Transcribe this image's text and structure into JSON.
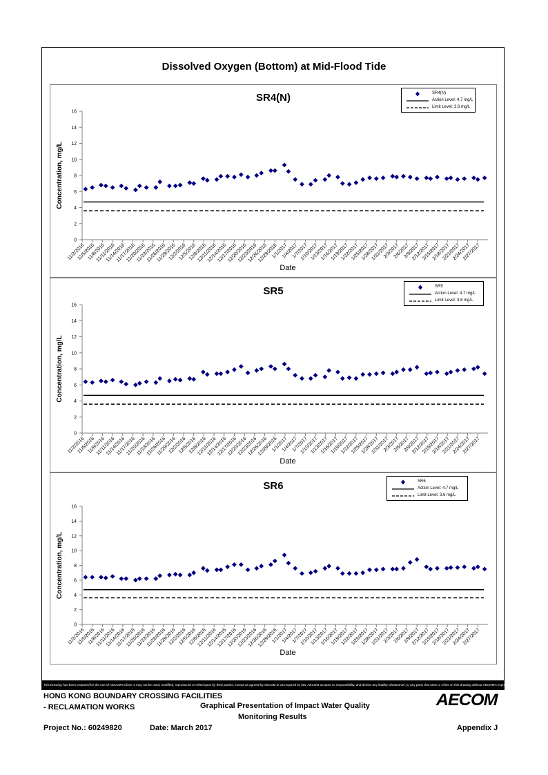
{
  "page_title": "Dissolved Oxygen (Bottom) at Mid-Flood Tide",
  "chart_data": [
    {
      "type": "scatter",
      "title": "SR4(N)",
      "xlabel": "Date",
      "ylabel": "Concentration, mg/L",
      "ylim": [
        0,
        16
      ],
      "yticks": [
        0,
        2,
        4,
        6,
        8,
        10,
        12,
        14,
        16
      ],
      "categories": [
        "11/2/2016",
        "11/5/2016",
        "11/8/2016",
        "11/11/2016",
        "11/14/2016",
        "11/17/2016",
        "11/20/2016",
        "11/23/2016",
        "11/26/2016",
        "11/29/2016",
        "12/2/2016",
        "12/5/2016",
        "12/8/2016",
        "12/11/2016",
        "12/14/2016",
        "12/17/2016",
        "12/20/2016",
        "12/23/2016",
        "12/26/2016",
        "12/29/2016",
        "1/1/2017",
        "1/4/2017",
        "1/7/2017",
        "1/10/2017",
        "1/13/2017",
        "1/16/2017",
        "1/19/2017",
        "1/22/2017",
        "1/25/2017",
        "1/28/2017",
        "1/31/2017",
        "2/3/2017",
        "2/6/2017",
        "2/9/2017",
        "2/12/2017",
        "2/15/2017",
        "2/18/2017",
        "2/21/2017",
        "2/24/2017",
        "2/27/2017"
      ],
      "series": [
        {
          "name": "SR4(N)",
          "marker": "diamond",
          "color": "#000080",
          "x": [
            0,
            1,
            2.3,
            3,
            4,
            5.3,
            6,
            7.4,
            8,
            9,
            10.4,
            11,
            12.4,
            13.3,
            14,
            15.4,
            16,
            17.4,
            18,
            19.4,
            20,
            21,
            22,
            23,
            24,
            25.3,
            26,
            27.4,
            28,
            29.4,
            30,
            31,
            32,
            33.3,
            34,
            35.4,
            36,
            37.3,
            38,
            39,
            40,
            41,
            42,
            43,
            44,
            45.4,
            46,
            47,
            48,
            49,
            50.4,
            51,
            52,
            53.4,
            54,
            55,
            56,
            57.4,
            58,
            59
          ],
          "y": [
            6.3,
            6.5,
            6.8,
            6.7,
            6.5,
            6.7,
            6.4,
            6.2,
            6.7,
            6.5,
            6.5,
            7.2,
            6.7,
            6.7,
            6.8,
            7.1,
            7.0,
            7.6,
            7.4,
            7.5,
            7.9,
            7.9,
            7.8,
            8.1,
            7.8,
            8.0,
            8.3,
            8.6,
            8.6,
            9.3,
            8.5,
            7.5,
            6.9,
            6.9,
            7.4,
            7.5,
            8.0,
            7.8,
            7.0,
            6.9,
            7.1,
            7.5,
            7.7,
            7.6,
            7.7,
            7.9,
            7.8,
            7.9,
            7.8,
            7.6,
            7.7,
            7.6,
            7.8,
            7.6,
            7.7,
            7.5,
            7.6,
            7.7,
            7.5,
            7.7
          ]
        },
        {
          "name": "Action Level: 4.7 mg/L",
          "y": 4.7,
          "line": "solid"
        },
        {
          "name": "Limit Level: 3.6 mg/L",
          "y": 3.6,
          "line": "dashed"
        }
      ]
    },
    {
      "type": "scatter",
      "title": "SR5",
      "xlabel": "Date",
      "ylabel": "Concentration, mg/L",
      "ylim": [
        0,
        16
      ],
      "yticks": [
        0,
        2,
        4,
        6,
        8,
        10,
        12,
        14,
        16
      ],
      "categories": [
        "11/2/2016",
        "11/5/2016",
        "11/8/2016",
        "11/11/2016",
        "11/14/2016",
        "11/17/2016",
        "11/20/2016",
        "11/23/2016",
        "11/26/2016",
        "11/29/2016",
        "12/2/2016",
        "12/5/2016",
        "12/8/2016",
        "12/11/2016",
        "12/14/2016",
        "12/17/2016",
        "12/20/2016",
        "12/23/2016",
        "12/26/2016",
        "12/29/2016",
        "1/1/2017",
        "1/4/2017",
        "1/7/2017",
        "1/10/2017",
        "1/13/2017",
        "1/16/2017",
        "1/19/2017",
        "1/22/2017",
        "1/25/2017",
        "1/28/2017",
        "1/31/2017",
        "2/3/2017",
        "2/6/2017",
        "2/9/2017",
        "2/12/2017",
        "2/15/2017",
        "2/18/2017",
        "2/21/2017",
        "2/24/2017",
        "2/27/2017"
      ],
      "series": [
        {
          "name": "SR5",
          "marker": "diamond",
          "color": "#000080",
          "x": [
            0,
            1,
            2.3,
            3,
            4,
            5.3,
            6,
            7.4,
            8,
            9,
            10.4,
            11,
            12.4,
            13.3,
            14,
            15.4,
            16,
            17.4,
            18,
            19.4,
            20,
            21,
            22,
            23,
            24,
            25.3,
            26,
            27.4,
            28,
            29.4,
            30,
            31,
            32,
            33.3,
            34,
            35.4,
            36,
            37.3,
            38,
            39,
            40,
            41,
            42,
            43,
            44,
            45.4,
            46,
            47,
            48,
            49,
            50.4,
            51,
            52,
            53.4,
            54,
            55,
            56,
            57.4,
            58,
            59
          ],
          "y": [
            6.4,
            6.3,
            6.5,
            6.4,
            6.6,
            6.4,
            6.1,
            6.0,
            6.2,
            6.4,
            6.3,
            6.8,
            6.5,
            6.7,
            6.6,
            6.8,
            6.7,
            7.6,
            7.3,
            7.4,
            7.4,
            7.6,
            7.9,
            8.3,
            7.5,
            7.8,
            8.0,
            8.3,
            8.0,
            8.6,
            8.0,
            7.2,
            6.8,
            6.8,
            7.2,
            7.0,
            7.8,
            7.6,
            6.8,
            6.9,
            6.8,
            7.3,
            7.3,
            7.4,
            7.5,
            7.4,
            7.6,
            7.9,
            7.9,
            8.2,
            7.4,
            7.5,
            7.6,
            7.4,
            7.6,
            7.8,
            7.9,
            8.0,
            8.2,
            7.4
          ]
        },
        {
          "name": "Action Level: 4.7 mg/L",
          "y": 4.7,
          "line": "solid"
        },
        {
          "name": "Limit Level: 3.6 mg/L",
          "y": 3.6,
          "line": "dashed"
        }
      ]
    },
    {
      "type": "scatter",
      "title": "SR6",
      "xlabel": "Date",
      "ylabel": "Concentration, mg/L",
      "ylim": [
        0,
        16
      ],
      "yticks": [
        0,
        2,
        4,
        6,
        8,
        10,
        12,
        14,
        16
      ],
      "categories": [
        "11/2/2016",
        "11/5/2016",
        "11/8/2016",
        "11/11/2016",
        "11/14/2016",
        "11/17/2016",
        "11/20/2016",
        "11/23/2016",
        "11/26/2016",
        "11/29/2016",
        "12/2/2016",
        "12/5/2016",
        "12/8/2016",
        "12/11/2016",
        "12/14/2016",
        "12/17/2016",
        "12/20/2016",
        "12/23/2016",
        "12/26/2016",
        "12/29/2016",
        "1/1/2017",
        "1/4/2017",
        "1/7/2017",
        "1/10/2017",
        "1/13/2017",
        "1/16/2017",
        "1/19/2017",
        "1/22/2017",
        "1/25/2017",
        "1/28/2017",
        "1/31/2017",
        "2/3/2017",
        "2/6/2017",
        "2/9/2017",
        "2/12/2017",
        "2/15/2017",
        "2/18/2017",
        "2/21/2017",
        "2/24/2017",
        "2/27/2017"
      ],
      "series": [
        {
          "name": "SR6",
          "marker": "diamond",
          "color": "#000080",
          "x": [
            0,
            1,
            2.3,
            3,
            4,
            5.3,
            6,
            7.4,
            8,
            9,
            10.4,
            11,
            12.4,
            13.3,
            14,
            15.4,
            16,
            17.4,
            18,
            19.4,
            20,
            21,
            22,
            23,
            24,
            25.3,
            26,
            27.4,
            28,
            29.4,
            30,
            31,
            32,
            33.3,
            34,
            35.4,
            36,
            37.3,
            38,
            39,
            40,
            41,
            42,
            43,
            44,
            45.4,
            46,
            47,
            48,
            49,
            50.4,
            51,
            52,
            53.4,
            54,
            55,
            56,
            57.4,
            58,
            59
          ],
          "y": [
            6.4,
            6.4,
            6.4,
            6.3,
            6.5,
            6.2,
            6.2,
            6.0,
            6.2,
            6.2,
            6.2,
            6.6,
            6.7,
            6.8,
            6.7,
            6.7,
            7.0,
            7.6,
            7.3,
            7.4,
            7.4,
            7.8,
            8.1,
            8.1,
            7.4,
            7.6,
            7.9,
            8.1,
            8.6,
            9.4,
            8.3,
            7.6,
            6.9,
            7.0,
            7.2,
            7.6,
            7.9,
            7.6,
            6.9,
            6.9,
            6.9,
            7.0,
            7.4,
            7.4,
            7.5,
            7.5,
            7.5,
            7.6,
            8.4,
            8.8,
            7.8,
            7.5,
            7.6,
            7.6,
            7.7,
            7.7,
            7.8,
            7.6,
            7.8,
            7.5
          ]
        },
        {
          "name": "Action Level: 4.7 mg/L",
          "y": 4.7,
          "line": "solid"
        },
        {
          "name": "Limit Level: 3.6 mg/L",
          "y": 3.6,
          "line": "dashed"
        }
      ]
    }
  ],
  "footer": {
    "disclaimer": "This Drawing has been prepared for the use of AECOM's client. It may not be used, modified, reproduced or relied upon by third parties, except as agreed by AECOM or as required by law. AECOM accepts no responsibility, and denies any liability whatsoever, to any party that uses or relies on this drawing without AECOM's express written consent.",
    "project_line1": "HONG KONG BOUNDARY CROSSING FACILITIES",
    "project_line2": "- RECLAMATION WORKS",
    "doc_title_line1": "Graphical Presentation of Impact Water Quality",
    "doc_title_line2": "Monitoring Results",
    "project_no": "Project No.: 60249820",
    "date": "Date: March 2017",
    "appendix": "Appendix J",
    "logo": "AECOM"
  }
}
